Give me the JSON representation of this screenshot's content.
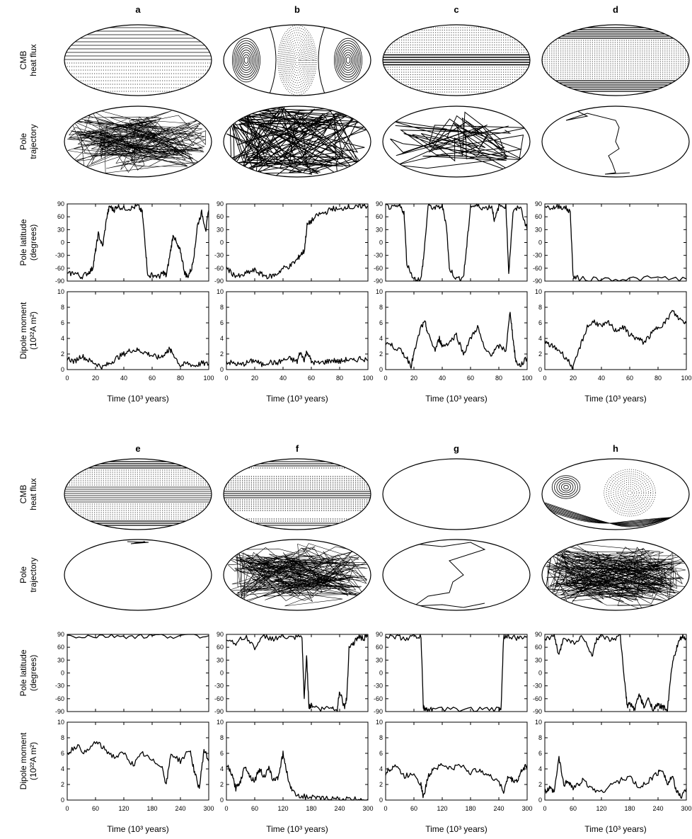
{
  "panels": [
    "a",
    "b",
    "c",
    "d",
    "e",
    "f",
    "g",
    "h"
  ],
  "row_labels": {
    "heat_flux": [
      "CMB",
      "heat flux"
    ],
    "trajectory": [
      "Pole",
      "trajectory"
    ],
    "latitude": [
      "Pole latitude",
      "(degrees)"
    ],
    "dipole": [
      "Dipole moment",
      "(10²²A m²)"
    ]
  },
  "x_label": "Time (10³ years)",
  "chart_data": [
    {
      "panel": "a",
      "type": "line",
      "variable": "pole_latitude",
      "ylabel": "Pole latitude (degrees)",
      "ylim": [
        -90,
        90
      ],
      "yticks": [
        -90,
        -60,
        -30,
        0,
        30,
        60,
        90
      ],
      "xlim": [
        0,
        100
      ],
      "x": [
        0,
        5,
        10,
        15,
        18,
        20,
        22,
        25,
        28,
        30,
        33,
        35,
        40,
        45,
        50,
        53,
        55,
        57,
        60,
        65,
        68,
        70,
        73,
        75,
        78,
        80,
        83,
        85,
        88,
        90,
        92,
        95,
        98,
        100
      ],
      "y": [
        -75,
        -70,
        -80,
        -70,
        -60,
        -20,
        20,
        -10,
        60,
        85,
        75,
        85,
        80,
        80,
        85,
        70,
        0,
        -80,
        -75,
        -80,
        -70,
        -78,
        -20,
        20,
        -10,
        -20,
        -70,
        -80,
        -60,
        -20,
        40,
        70,
        30,
        75
      ]
    },
    {
      "panel": "a",
      "type": "line",
      "variable": "dipole_moment",
      "ylabel": "Dipole moment (10²²A m²)",
      "ylim": [
        0,
        10
      ],
      "yticks": [
        0,
        2,
        4,
        6,
        8,
        10
      ],
      "xlim": [
        0,
        100
      ],
      "x": [
        0,
        5,
        10,
        15,
        20,
        25,
        30,
        35,
        40,
        45,
        50,
        55,
        60,
        65,
        70,
        72,
        75,
        80,
        85,
        90,
        95,
        100
      ],
      "y": [
        1.5,
        1.0,
        1.8,
        1.2,
        0.8,
        0.3,
        0.8,
        1.5,
        2.0,
        2.5,
        2.5,
        2.2,
        1.8,
        1.5,
        2.2,
        2.6,
        2.0,
        0.5,
        0.8,
        0.5,
        0.8,
        0.7
      ]
    },
    {
      "panel": "b",
      "type": "line",
      "variable": "pole_latitude",
      "ylim": [
        -90,
        90
      ],
      "yticks": [
        -90,
        -60,
        -30,
        0,
        30,
        60,
        90
      ],
      "xlim": [
        0,
        100
      ],
      "x": [
        0,
        5,
        10,
        15,
        20,
        25,
        30,
        35,
        40,
        45,
        50,
        52,
        55,
        57,
        60,
        65,
        70,
        75,
        80,
        85,
        90,
        95,
        100
      ],
      "y": [
        -60,
        -75,
        -80,
        -70,
        -65,
        -75,
        -80,
        -75,
        -60,
        -55,
        -40,
        -30,
        -20,
        40,
        50,
        65,
        70,
        80,
        75,
        85,
        80,
        85,
        85
      ]
    },
    {
      "panel": "b",
      "type": "line",
      "variable": "dipole_moment",
      "ylim": [
        0,
        10
      ],
      "yticks": [
        0,
        2,
        4,
        6,
        8,
        10
      ],
      "xlim": [
        0,
        100
      ],
      "x": [
        0,
        5,
        10,
        15,
        20,
        25,
        30,
        35,
        40,
        45,
        50,
        52,
        55,
        57,
        60,
        65,
        70,
        75,
        80,
        85,
        90,
        95,
        100
      ],
      "y": [
        1.0,
        0.8,
        0.6,
        0.9,
        1.2,
        0.6,
        1.0,
        0.8,
        1.2,
        1.4,
        1.0,
        2.2,
        1.3,
        2.4,
        1.0,
        0.8,
        1.0,
        1.2,
        1.0,
        1.3,
        1.1,
        1.5,
        1.2
      ]
    },
    {
      "panel": "c",
      "type": "line",
      "variable": "pole_latitude",
      "ylim": [
        -90,
        90
      ],
      "yticks": [
        -90,
        -60,
        -30,
        0,
        30,
        60,
        90
      ],
      "xlim": [
        0,
        100
      ],
      "x": [
        0,
        5,
        10,
        13,
        15,
        20,
        25,
        27,
        30,
        35,
        40,
        43,
        45,
        50,
        55,
        57,
        60,
        65,
        70,
        75,
        77,
        80,
        85,
        87,
        90,
        95,
        100
      ],
      "y": [
        85,
        80,
        85,
        70,
        -50,
        -85,
        -85,
        -30,
        85,
        80,
        85,
        40,
        -60,
        -85,
        -80,
        -20,
        85,
        85,
        80,
        85,
        50,
        85,
        85,
        -70,
        70,
        85,
        30
      ]
    },
    {
      "panel": "c",
      "type": "line",
      "variable": "dipole_moment",
      "ylim": [
        0,
        10
      ],
      "yticks": [
        0,
        2,
        4,
        6,
        8,
        10
      ],
      "xlim": [
        0,
        100
      ],
      "x": [
        0,
        5,
        10,
        15,
        18,
        20,
        25,
        28,
        30,
        35,
        38,
        40,
        45,
        50,
        55,
        60,
        65,
        70,
        75,
        80,
        85,
        88,
        90,
        92,
        95,
        100
      ],
      "y": [
        3.5,
        3.0,
        2.5,
        1.5,
        0.5,
        2.0,
        5.5,
        6.0,
        4.5,
        2.5,
        4.0,
        3.0,
        3.5,
        4.5,
        2.0,
        4.0,
        5.5,
        2.5,
        2.0,
        3.0,
        2.5,
        7.5,
        4.0,
        1.0,
        0.5,
        1.5
      ]
    },
    {
      "panel": "d",
      "type": "line",
      "variable": "pole_latitude",
      "ylim": [
        -90,
        90
      ],
      "yticks": [
        -90,
        -60,
        -30,
        0,
        30,
        60,
        90
      ],
      "xlim": [
        0,
        100
      ],
      "x": [
        0,
        5,
        10,
        15,
        18,
        20,
        25,
        40,
        60,
        80,
        100
      ],
      "y": [
        85,
        80,
        85,
        80,
        70,
        -80,
        -85,
        -85,
        -85,
        -83,
        -85
      ]
    },
    {
      "panel": "d",
      "type": "line",
      "variable": "dipole_moment",
      "ylim": [
        0,
        10
      ],
      "yticks": [
        0,
        2,
        4,
        6,
        8,
        10
      ],
      "xlim": [
        0,
        100
      ],
      "x": [
        0,
        5,
        10,
        15,
        20,
        25,
        30,
        35,
        40,
        45,
        50,
        55,
        60,
        65,
        70,
        75,
        80,
        85,
        90,
        95,
        100
      ],
      "y": [
        3.5,
        3.0,
        2.5,
        1.5,
        0.2,
        3.0,
        5.5,
        6.2,
        5.5,
        6.0,
        5.0,
        5.5,
        4.5,
        4.0,
        3.5,
        4.5,
        5.5,
        6.0,
        7.5,
        6.5,
        6.0
      ]
    },
    {
      "panel": "e",
      "type": "line",
      "variable": "pole_latitude",
      "ylim": [
        -90,
        90
      ],
      "yticks": [
        -90,
        -60,
        -30,
        0,
        30,
        60,
        90
      ],
      "xlim": [
        0,
        300
      ],
      "x": [
        0,
        50,
        100,
        150,
        200,
        250,
        300
      ],
      "y": [
        87,
        86,
        87,
        86,
        87,
        86,
        87
      ]
    },
    {
      "panel": "e",
      "type": "line",
      "variable": "dipole_moment",
      "ylim": [
        0,
        10
      ],
      "yticks": [
        0,
        2,
        4,
        6,
        8,
        10
      ],
      "xlim": [
        0,
        300
      ],
      "x": [
        0,
        20,
        40,
        60,
        80,
        100,
        120,
        140,
        160,
        180,
        200,
        210,
        220,
        240,
        260,
        270,
        280,
        290,
        300
      ],
      "y": [
        6.0,
        7.0,
        6.0,
        7.5,
        6.5,
        5.5,
        6.0,
        4.5,
        6.0,
        5.0,
        4.5,
        2.0,
        6.0,
        5.0,
        6.5,
        3.5,
        1.5,
        6.5,
        5.0
      ]
    },
    {
      "panel": "f",
      "type": "line",
      "variable": "pole_latitude",
      "ylim": [
        -90,
        90
      ],
      "yticks": [
        -90,
        -60,
        -30,
        0,
        30,
        60,
        90
      ],
      "xlim": [
        0,
        300
      ],
      "x": [
        0,
        20,
        40,
        60,
        80,
        100,
        120,
        140,
        160,
        165,
        170,
        175,
        180,
        200,
        220,
        235,
        240,
        250,
        255,
        260,
        270,
        280,
        290,
        300
      ],
      "y": [
        80,
        70,
        85,
        60,
        85,
        80,
        85,
        80,
        85,
        -60,
        40,
        -80,
        -75,
        -85,
        -80,
        -85,
        -40,
        -80,
        -60,
        60,
        70,
        85,
        80,
        85
      ]
    },
    {
      "panel": "f",
      "type": "line",
      "variable": "dipole_moment",
      "ylim": [
        0,
        10
      ],
      "yticks": [
        0,
        2,
        4,
        6,
        8,
        10
      ],
      "xlim": [
        0,
        300
      ],
      "x": [
        0,
        10,
        20,
        30,
        40,
        50,
        60,
        70,
        80,
        90,
        100,
        110,
        120,
        130,
        140,
        160,
        180,
        200,
        220,
        240,
        260,
        280,
        300
      ],
      "y": [
        4.5,
        3.5,
        1.5,
        2.5,
        4.5,
        3.0,
        2.5,
        4.0,
        3.0,
        4.0,
        2.5,
        3.0,
        6.0,
        3.0,
        1.0,
        0.5,
        0.3,
        0.2,
        0.2,
        0.1,
        0.1,
        0.1,
        0.1
      ]
    },
    {
      "panel": "g",
      "type": "line",
      "variable": "pole_latitude",
      "ylim": [
        -90,
        90
      ],
      "yticks": [
        -90,
        -60,
        -30,
        0,
        30,
        60,
        90
      ],
      "xlim": [
        0,
        300
      ],
      "x": [
        0,
        20,
        40,
        60,
        75,
        80,
        85,
        100,
        150,
        200,
        240,
        245,
        250,
        260,
        280,
        300
      ],
      "y": [
        85,
        85,
        80,
        85,
        85,
        -80,
        -85,
        -85,
        -85,
        -85,
        -85,
        -80,
        85,
        85,
        80,
        85
      ]
    },
    {
      "panel": "g",
      "type": "line",
      "variable": "dipole_moment",
      "ylim": [
        0,
        10
      ],
      "yticks": [
        0,
        2,
        4,
        6,
        8,
        10
      ],
      "xlim": [
        0,
        300
      ],
      "x": [
        0,
        10,
        20,
        40,
        60,
        75,
        80,
        90,
        100,
        120,
        140,
        160,
        180,
        200,
        220,
        240,
        250,
        260,
        270,
        280,
        290,
        300
      ],
      "y": [
        3.5,
        4.0,
        4.5,
        3.0,
        3.5,
        2.0,
        0.3,
        3.0,
        4.0,
        4.5,
        4.0,
        4.5,
        3.5,
        4.0,
        3.0,
        2.5,
        1.0,
        3.0,
        2.5,
        2.5,
        4.0,
        4.5
      ]
    },
    {
      "panel": "h",
      "type": "line",
      "variable": "pole_latitude",
      "ylim": [
        -90,
        90
      ],
      "yticks": [
        -90,
        -60,
        -30,
        0,
        30,
        60,
        90
      ],
      "xlim": [
        0,
        300
      ],
      "x": [
        0,
        20,
        30,
        40,
        60,
        80,
        100,
        110,
        120,
        140,
        160,
        170,
        175,
        180,
        190,
        200,
        210,
        220,
        230,
        240,
        250,
        260,
        270,
        280,
        290,
        300
      ],
      "y": [
        80,
        85,
        40,
        85,
        70,
        85,
        40,
        80,
        85,
        75,
        85,
        -30,
        -80,
        -70,
        -85,
        -50,
        -80,
        -60,
        -85,
        -75,
        -80,
        -85,
        20,
        60,
        85,
        80
      ]
    },
    {
      "panel": "h",
      "type": "line",
      "variable": "dipole_moment",
      "ylim": [
        0,
        10
      ],
      "yticks": [
        0,
        2,
        4,
        6,
        8,
        10
      ],
      "xlim": [
        0,
        300
      ],
      "x": [
        0,
        10,
        20,
        30,
        40,
        50,
        60,
        70,
        80,
        100,
        120,
        140,
        160,
        180,
        200,
        220,
        240,
        250,
        260,
        270,
        280,
        290,
        300
      ],
      "y": [
        1.0,
        1.5,
        1.0,
        5.5,
        2.0,
        2.5,
        1.5,
        2.0,
        2.5,
        1.5,
        1.0,
        2.0,
        2.5,
        3.0,
        1.5,
        2.5,
        3.5,
        4.0,
        2.0,
        3.0,
        1.0,
        0.5,
        1.5
      ]
    }
  ]
}
